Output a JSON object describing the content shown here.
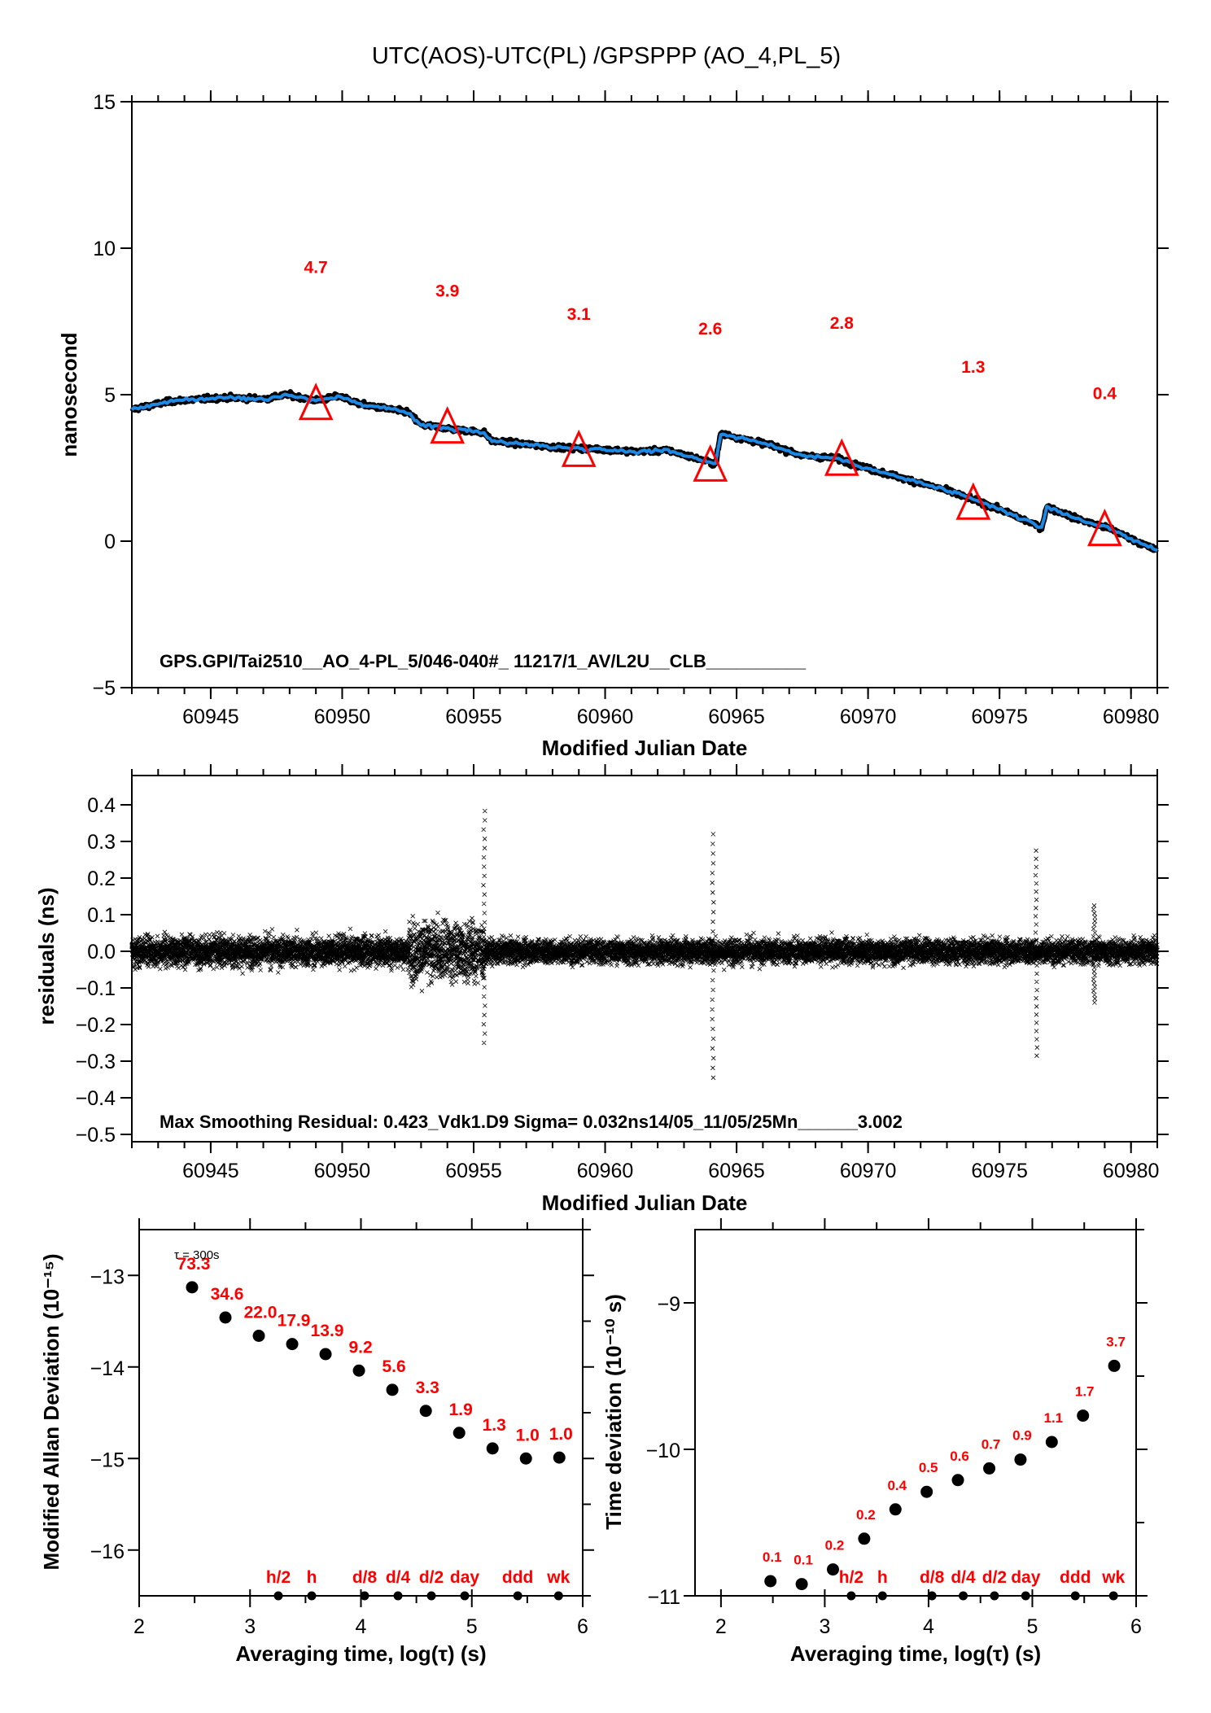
{
  "title": "UTC(AOS)-UTC(PL)  /GPSPPP  (AO_4,PL_5)",
  "chart_data": [
    {
      "id": "time-series",
      "type": "line",
      "title": "UTC(AOS)-UTC(PL)  /GPSPPP  (AO_4,PL_5)",
      "xlabel": "Modified Julian Date",
      "ylabel": "nanosecond",
      "xlim": [
        60942,
        60981
      ],
      "ylim": [
        -5,
        15
      ],
      "xticks": [
        60945,
        60950,
        60955,
        60960,
        60965,
        60970,
        60975,
        60980
      ],
      "xtick_labels": [
        "60945",
        "60950",
        "60955",
        "60960",
        "60965",
        "60970",
        "60975",
        "60980"
      ],
      "yticks": [
        -5,
        0,
        5,
        10,
        15
      ],
      "ytick_labels": [
        "−5",
        "0",
        "5",
        "10",
        "15"
      ],
      "grid": false,
      "series_color": "#1e88e5",
      "raw_color": "#000000",
      "marker_color": "#ff0000",
      "series": [
        {
          "name": "smoothed",
          "x": [
            60942.0,
            60943.5,
            60945.5,
            60947.1,
            60947.9,
            60949.0,
            60949.9,
            60950.7,
            60952.5,
            60953.0,
            60954.1,
            60955.4,
            60955.7,
            60958.2,
            60959.8,
            60961.1,
            60962.4,
            60964.2,
            60964.4,
            60966.3,
            60967.5,
            60968.8,
            60970.1,
            60972.7,
            60974.3,
            60975.3,
            60976.6,
            60976.8,
            60977.9,
            60979.2,
            60981.0
          ],
          "y": [
            4.5,
            4.78,
            4.9,
            4.86,
            5.0,
            4.8,
            4.95,
            4.67,
            4.4,
            3.97,
            3.84,
            3.7,
            3.42,
            3.2,
            3.14,
            3.06,
            3.1,
            2.64,
            3.67,
            3.28,
            2.92,
            2.83,
            2.45,
            1.81,
            1.33,
            0.97,
            0.47,
            1.17,
            0.78,
            0.42,
            -0.33
          ]
        }
      ],
      "markers": {
        "shape": "triangle",
        "x": [
          60949,
          60954,
          60959,
          60964,
          60969,
          60974,
          60979
        ],
        "y": [
          4.7,
          3.9,
          3.1,
          2.6,
          2.8,
          1.3,
          0.4
        ],
        "labels": [
          "4.7",
          "3.9",
          "3.1",
          "2.6",
          "2.8",
          "1.3",
          "0.4"
        ],
        "label_offset": 4.7
      },
      "annotation": "GPS.GPI/Tai2510__AO_4-PL_5/046-040#_  11217/1_AV/L2U__CLB__________"
    },
    {
      "id": "residuals",
      "type": "scatter",
      "xlabel": "Modified Julian Date",
      "ylabel": "residuals (ns)",
      "xlim": [
        60942,
        60981
      ],
      "ylim": [
        -0.52,
        0.48
      ],
      "xticks": [
        60945,
        60950,
        60955,
        60960,
        60965,
        60970,
        60975,
        60980
      ],
      "xtick_labels": [
        "60945",
        "60950",
        "60955",
        "60960",
        "60965",
        "60970",
        "60975",
        "60980"
      ],
      "yticks": [
        0.4,
        0.3,
        0.2,
        0.1,
        0.0,
        -0.1,
        -0.2,
        -0.3,
        -0.4,
        -0.5
      ],
      "ytick_labels": [
        "0.4",
        "0.3",
        "0.2",
        "0.1",
        "0.0",
        "−0.1",
        "−0.2",
        "−0.3",
        "−0.4",
        "−0.5"
      ],
      "grid": false,
      "marker": "x",
      "noise_sigma": 0.032,
      "noise_envelope": [
        {
          "x": [
            60942.0,
            60952.5
          ],
          "amp": 0.06
        },
        {
          "x": [
            60952.5,
            60955.4
          ],
          "amp": 0.12
        },
        {
          "x": [
            60955.4,
            60981.0
          ],
          "amp": 0.05
        }
      ],
      "outlier_bursts": [
        {
          "x": 60955.4,
          "ymax": 0.383,
          "ymin": -0.25
        },
        {
          "x": 60964.1,
          "ymax": 0.32,
          "ymin": -0.345
        },
        {
          "x": 60976.4,
          "ymax": 0.275,
          "ymin": -0.285
        },
        {
          "x": 60978.6,
          "ymax": 0.125,
          "ymin": -0.14
        }
      ],
      "annotation": "Max Smoothing Residual: 0.423_Vdk1.D9  Sigma= 0.032ns14/05_11/05/25Mn______3.002"
    },
    {
      "id": "mod-allan-deviation",
      "type": "scatter",
      "xlabel": "Averaging time, log(τ) (s)",
      "ylabel": "Modified Allan Deviation (10⁻¹⁵)",
      "xlim": [
        2,
        6
      ],
      "ylim": [
        -16.5,
        -12.5
      ],
      "xticks": [
        2,
        3,
        4,
        5,
        6
      ],
      "xtick_labels": [
        "2",
        "3",
        "4",
        "5",
        "6"
      ],
      "yticks": [
        -13,
        -14,
        -15,
        -16
      ],
      "ytick_labels": [
        "−13",
        "−14",
        "−15",
        "−16"
      ],
      "tau0_label": "τ = 300s",
      "x": [
        2.477,
        2.778,
        3.079,
        3.38,
        3.681,
        3.982,
        4.283,
        4.585,
        4.886,
        5.187,
        5.488,
        5.789
      ],
      "y": [
        -13.13,
        -13.46,
        -13.66,
        -13.75,
        -13.86,
        -14.04,
        -14.25,
        -14.48,
        -14.72,
        -14.89,
        -15.0,
        -14.99
      ],
      "labels": [
        "73.3",
        "34.6",
        "22.0",
        "17.9",
        "13.9",
        "9.2",
        "5.6",
        "3.3",
        "1.9",
        "1.3",
        "1.0",
        "1.0"
      ],
      "period_markers": {
        "labels": [
          "h/2",
          "h",
          "d/8",
          "d/4",
          "d/2",
          "day",
          "ddd",
          "wk"
        ],
        "x": [
          3.255,
          3.556,
          4.033,
          4.334,
          4.635,
          4.936,
          5.414,
          5.782
        ]
      }
    },
    {
      "id": "time-deviation",
      "type": "scatter",
      "xlabel": "Averaging time, log(τ) (s)",
      "ylabel": "Time deviation (10⁻¹⁰ s)",
      "xlim": [
        1.75,
        6
      ],
      "ylim": [
        -11,
        -8.5
      ],
      "xticks": [
        2,
        3,
        4,
        5,
        6
      ],
      "xtick_labels": [
        "2",
        "3",
        "4",
        "5",
        "6"
      ],
      "yticks": [
        -9,
        -10,
        -11
      ],
      "ytick_labels": [
        "−9",
        "−10",
        "−11"
      ],
      "x": [
        2.477,
        2.778,
        3.079,
        3.38,
        3.681,
        3.982,
        4.283,
        4.585,
        4.886,
        5.187,
        5.488,
        5.789
      ],
      "y": [
        -10.9,
        -10.92,
        -10.82,
        -10.61,
        -10.41,
        -10.29,
        -10.21,
        -10.13,
        -10.07,
        -9.95,
        -9.77,
        -9.43
      ],
      "labels": [
        "0.1",
        "0.1",
        "0.2",
        "0.2",
        "0.4",
        "0.5",
        "0.6",
        "0.7",
        "0.9",
        "1.1",
        "1.7",
        "3.7"
      ],
      "period_markers": {
        "labels": [
          "h/2",
          "h",
          "d/8",
          "d/4",
          "d/2",
          "day",
          "ddd",
          "wk"
        ],
        "x": [
          3.255,
          3.556,
          4.033,
          4.334,
          4.635,
          4.936,
          5.414,
          5.782
        ]
      }
    }
  ]
}
